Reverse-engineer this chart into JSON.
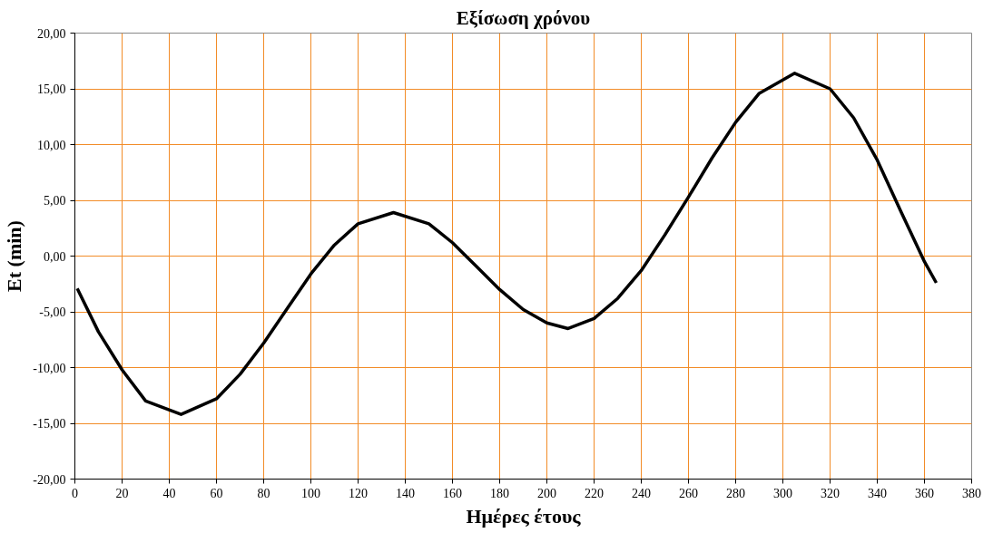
{
  "chart_data": {
    "type": "line",
    "title": "Εξίσωση χρόνου",
    "xlabel": "Ημέρες έτους",
    "ylabel": "Et (min)",
    "x": [
      1,
      10,
      20,
      30,
      45,
      60,
      70,
      80,
      90,
      100,
      110,
      120,
      135,
      150,
      160,
      170,
      180,
      190,
      200,
      209,
      220,
      230,
      240,
      250,
      260,
      270,
      280,
      290,
      305,
      320,
      330,
      340,
      350,
      360,
      365
    ],
    "series": [
      {
        "color": "#000000",
        "values": [
          -2.9,
          -6.8,
          -10.2,
          -13.0,
          -14.2,
          -12.8,
          -10.6,
          -7.8,
          -4.7,
          -1.6,
          1.0,
          2.9,
          3.9,
          2.9,
          1.2,
          -0.9,
          -3.0,
          -4.8,
          -6.0,
          -6.5,
          -5.6,
          -3.8,
          -1.3,
          1.9,
          5.3,
          8.8,
          12.0,
          14.6,
          16.4,
          15.0,
          12.4,
          8.6,
          4.0,
          -0.5,
          -2.4
        ]
      }
    ],
    "xlim": [
      0,
      380
    ],
    "xticks": [
      0,
      20,
      40,
      60,
      80,
      100,
      120,
      140,
      160,
      180,
      200,
      220,
      240,
      260,
      280,
      300,
      320,
      340,
      360,
      380
    ],
    "ylim": [
      -20,
      20
    ],
    "yticks": [
      {
        "value": -20,
        "label": "-20,00"
      },
      {
        "value": -15,
        "label": "-15,00"
      },
      {
        "value": -10,
        "label": "-10,00"
      },
      {
        "value": -5,
        "label": "-5,00"
      },
      {
        "value": 0,
        "label": "0,00"
      },
      {
        "value": 5,
        "label": "5,00"
      },
      {
        "value": 10,
        "label": "10,00"
      },
      {
        "value": 15,
        "label": "15,00"
      },
      {
        "value": 20,
        "label": "20,00"
      }
    ],
    "grid": true,
    "marker": "none",
    "line_style": "solid"
  }
}
